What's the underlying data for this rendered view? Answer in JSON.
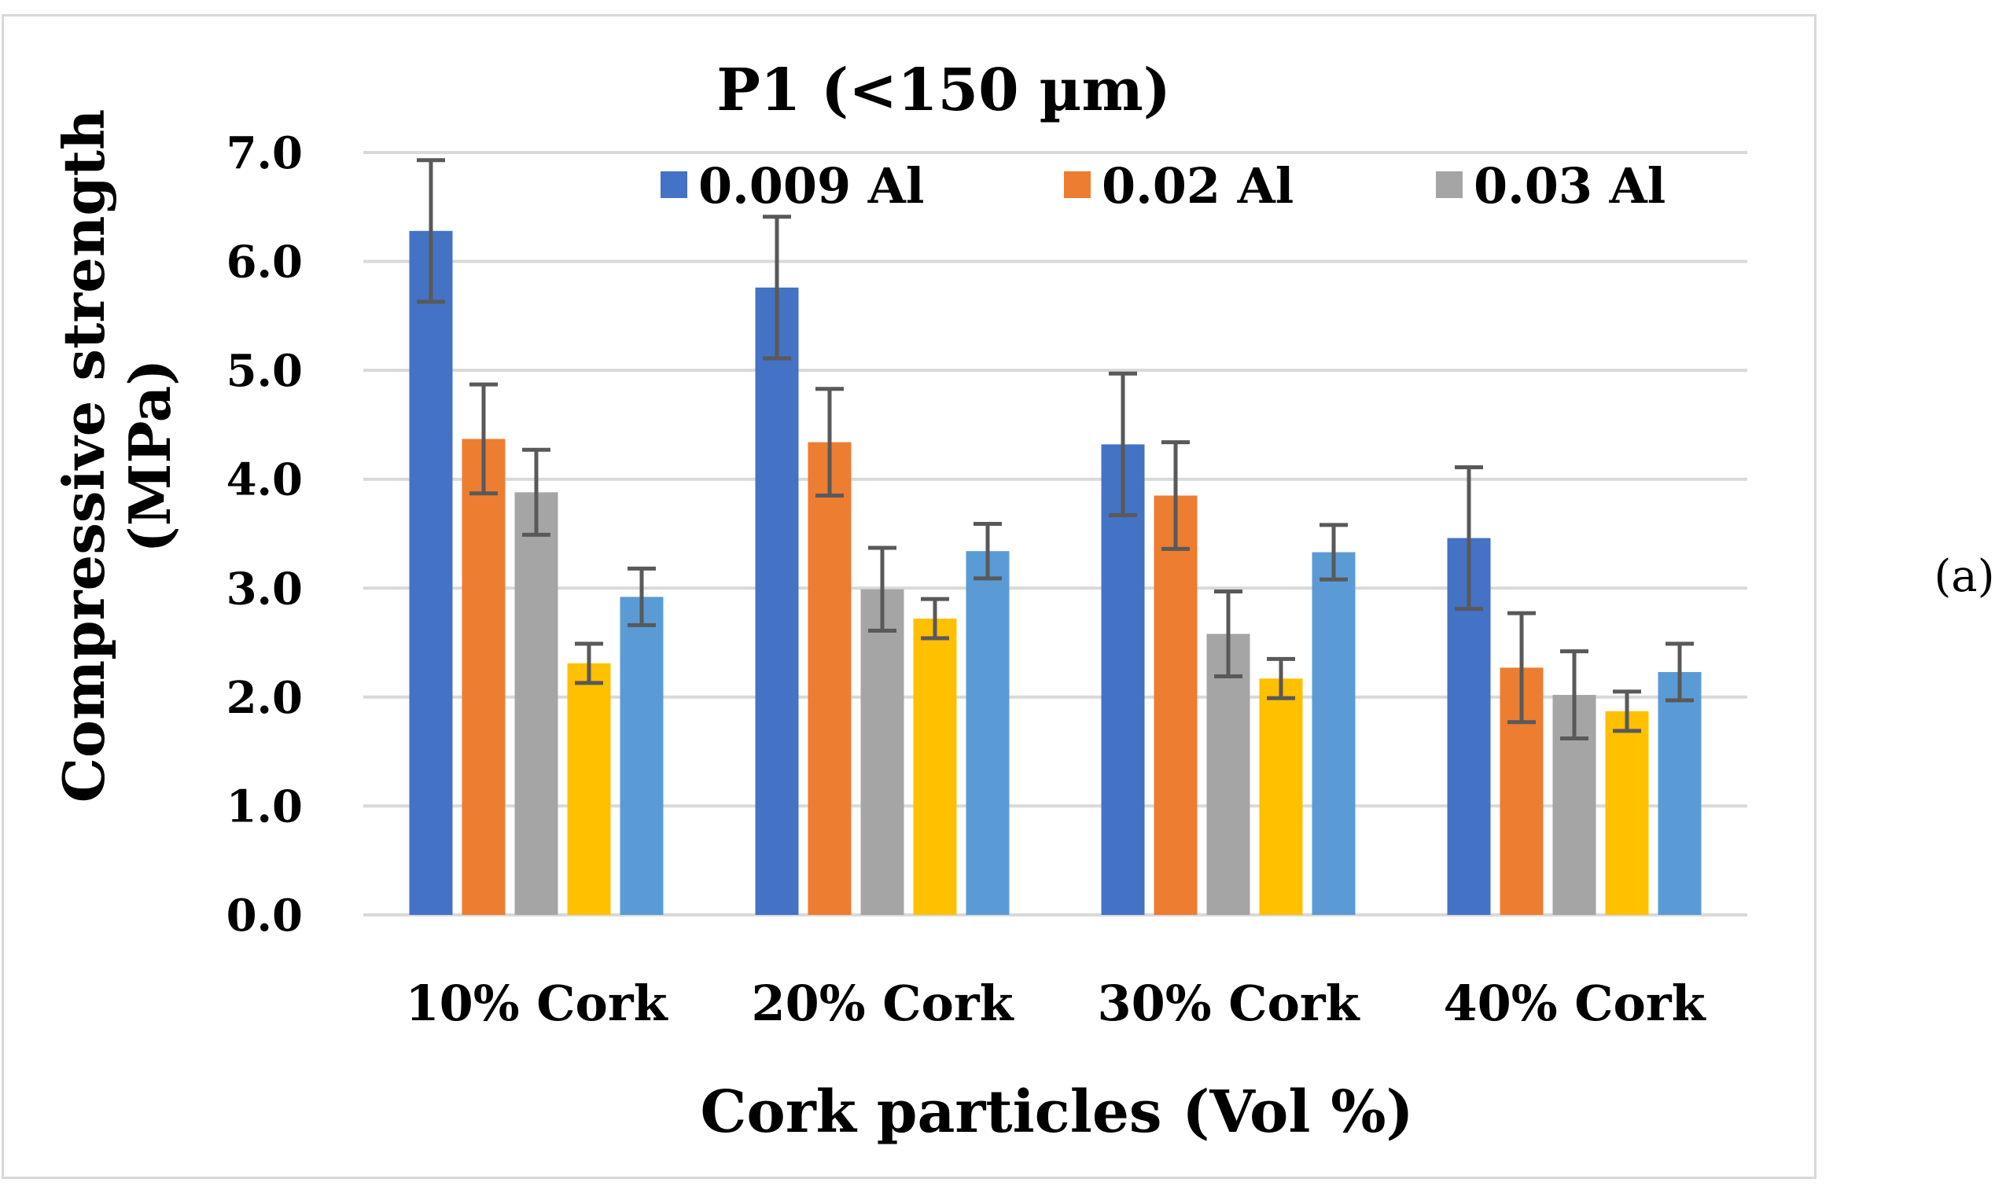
{
  "chart_data": {
    "type": "bar",
    "title": "P1 (<150 µm)",
    "xlabel": "Cork particles (Vol %)",
    "ylabel_line1": "Compressive strength",
    "ylabel_line2": "(MPa)",
    "panel_label": "(a)",
    "ylim": [
      0,
      7
    ],
    "yticks": [
      "0.0",
      "1.0",
      "2.0",
      "3.0",
      "4.0",
      "5.0",
      "6.0",
      "7.0"
    ],
    "grid": true,
    "legend_position": "top-right",
    "categories": [
      "10% Cork",
      "20% Cork",
      "30% Cork",
      "40% Cork"
    ],
    "series": [
      {
        "name": "0.009 Al",
        "color": "#4472c4",
        "in_legend": true,
        "values": [
          6.28,
          5.76,
          4.32,
          3.46
        ],
        "errors": [
          0.65,
          0.65,
          0.65,
          0.65
        ]
      },
      {
        "name": "0.02 Al",
        "color": "#ed7d31",
        "in_legend": true,
        "values": [
          4.37,
          4.34,
          3.85,
          2.27
        ],
        "errors": [
          0.5,
          0.49,
          0.49,
          0.5
        ]
      },
      {
        "name": "0.03 Al",
        "color": "#a5a5a5",
        "in_legend": true,
        "values": [
          3.88,
          2.99,
          2.58,
          2.02
        ],
        "errors": [
          0.39,
          0.38,
          0.39,
          0.4
        ]
      },
      {
        "name": "",
        "color": "#ffc000",
        "in_legend": false,
        "values": [
          2.31,
          2.72,
          2.17,
          1.87
        ],
        "errors": [
          0.18,
          0.18,
          0.18,
          0.18
        ]
      },
      {
        "name": "",
        "color": "#5b9bd5",
        "in_legend": false,
        "values": [
          2.92,
          3.34,
          3.33,
          2.23
        ],
        "errors": [
          0.26,
          0.25,
          0.25,
          0.26
        ]
      }
    ]
  }
}
